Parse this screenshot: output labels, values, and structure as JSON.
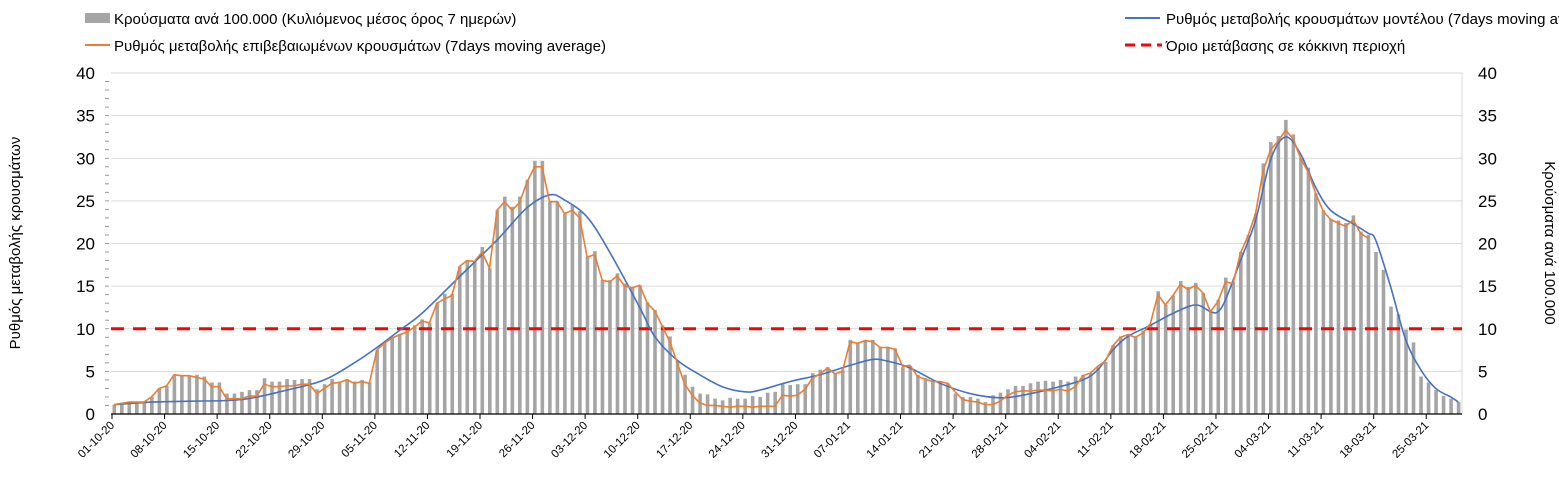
{
  "chart_data": {
    "type": "bar+line",
    "legend": {
      "position": "top",
      "entries": [
        {
          "key": "bars",
          "label": "Κρούσματα ανά 100.000 (Κυλιόμενος μέσος όρος 7 ημερών)"
        },
        {
          "key": "model",
          "label": "Ρυθμός μεταβολής κρουσμάτων μοντέλου (7days moving average)"
        },
        {
          "key": "confirmed",
          "label": "Ρυθμός μεταβολής επιβεβαιωμένων κρουσμάτων (7days moving average)"
        },
        {
          "key": "threshold",
          "label": "Όριο μετάβασης σε κόκκινη περιοχή"
        }
      ]
    },
    "ylabel_left": "Ρυθμός μεταβολής κρουσμάτων",
    "ylabel_right": "Κρούσματα ανά 100.000",
    "ylim": [
      0,
      40
    ],
    "yticks": [
      "0",
      "5",
      "10",
      "15",
      "20",
      "25",
      "30",
      "35",
      "40"
    ],
    "x_unit": "day index (day 0 = 01-10-20)",
    "x_tick_labels": [
      "01-10-20",
      "08-10-20",
      "15-10-20",
      "22-10-20",
      "29-10-20",
      "05-11-20",
      "12-11-20",
      "19-11-20",
      "26-11-20",
      "03-12-20",
      "10-12-20",
      "17-12-20",
      "24-12-20",
      "31-12-20",
      "07-01-21",
      "14-01-21",
      "21-01-21",
      "28-01-21",
      "04-02-21",
      "11-02-21",
      "18-02-21",
      "25-02-21",
      "04-03-21",
      "11-03-21",
      "18-03-21",
      "25-03-21"
    ],
    "x_tick_step_days": 7,
    "grid": true,
    "threshold": 10,
    "colors": {
      "bars": "#a5a5a5",
      "model": "#4472c4",
      "confirmed": "#ed7d31",
      "threshold": "#ff0000"
    },
    "bars": [
      1.1,
      1.25,
      1.4,
      1.4,
      1.4,
      2.0,
      3.0,
      3.3,
      4.6,
      4.5,
      4.5,
      4.6,
      4.4,
      3.7,
      3.7,
      2.4,
      2.4,
      2.6,
      2.8,
      2.8,
      4.2,
      3.8,
      3.8,
      4.1,
      4.0,
      4.1,
      4.1,
      2.9,
      3.5,
      4.1,
      3.8,
      4.1,
      3.8,
      4.0,
      3.7,
      7.5,
      8.3,
      8.9,
      9.3,
      10.0,
      10.4,
      11.1,
      10.7,
      13.0,
      14.1,
      14.1,
      17.3,
      18.0,
      17.9,
      19.6,
      17.1,
      23.9,
      25.5,
      24.3,
      25.5,
      27.5,
      29.7,
      29.7,
      24.9,
      24.9,
      23.5,
      24.5,
      23.8,
      18.4,
      19.1,
      15.7,
      15.7,
      16.5,
      15.3,
      14.9,
      15.1,
      13.1,
      12.2,
      10.4,
      9.1,
      6.2,
      4.6,
      3.2,
      2.4,
      2.3,
      1.8,
      1.6,
      1.9,
      1.8,
      1.8,
      2.1,
      2.0,
      2.5,
      2.6,
      3.5,
      3.4,
      3.5,
      3.5,
      4.8,
      5.2,
      5.5,
      4.8,
      5.2,
      8.7,
      8.3,
      8.7,
      8.7,
      7.9,
      7.9,
      7.7,
      5.5,
      5.6,
      4.6,
      4.2,
      3.8,
      3.8,
      3.6,
      2.4,
      2.0,
      2.0,
      1.8,
      1.4,
      2.2,
      2.5,
      2.9,
      3.3,
      3.3,
      3.6,
      3.8,
      3.9,
      3.8,
      4.0,
      3.8,
      4.4,
      4.6,
      4.8,
      5.5,
      6.1,
      8.1,
      9.1,
      9.4,
      9.1,
      9.8,
      10.6,
      14.4,
      12.8,
      13.9,
      15.6,
      14.9,
      15.4,
      14.2,
      12.0,
      13.4,
      16.0,
      15.5,
      19.0,
      21.0,
      23.5,
      29.4,
      31.9,
      32.6,
      34.5,
      32.8,
      30.0,
      28.9,
      25.9,
      23.9,
      22.9,
      22.7,
      22.4,
      23.3,
      21.4,
      21.0,
      19.0,
      16.9,
      12.6,
      11.7,
      9.9,
      8.4,
      4.4,
      3.7,
      2.8,
      2.1,
      1.8,
      1.4
    ],
    "confirmed": [
      1.1,
      1.25,
      1.4,
      1.4,
      1.4,
      2.0,
      3.0,
      3.3,
      4.6,
      4.5,
      4.5,
      4.3,
      4.1,
      3.2,
      3.2,
      1.8,
      1.8,
      1.8,
      2.1,
      2.1,
      3.5,
      3.2,
      3.2,
      3.3,
      3.3,
      3.5,
      3.5,
      2.4,
      3.0,
      3.6,
      3.7,
      4.0,
      3.6,
      3.8,
      3.6,
      7.5,
      8.3,
      8.9,
      9.3,
      9.6,
      10.2,
      10.9,
      10.7,
      13.0,
      13.5,
      13.9,
      17.3,
      18.0,
      17.9,
      19.0,
      17.1,
      23.9,
      24.9,
      23.9,
      24.8,
      27.2,
      29.0,
      29.0,
      24.9,
      24.9,
      23.5,
      23.9,
      23.0,
      18.4,
      18.7,
      15.7,
      15.5,
      16.2,
      15.0,
      14.8,
      15.1,
      13.0,
      12.1,
      10.3,
      8.5,
      6.0,
      3.5,
      2.2,
      1.3,
      1.0,
      1.0,
      0.9,
      0.8,
      0.9,
      0.9,
      0.8,
      0.9,
      0.9,
      0.9,
      2.2,
      2.1,
      2.2,
      2.9,
      4.2,
      4.7,
      5.4,
      4.7,
      5.0,
      8.5,
      8.3,
      8.6,
      8.5,
      7.8,
      7.8,
      7.6,
      5.6,
      5.7,
      4.4,
      4.1,
      3.8,
      3.8,
      3.6,
      2.6,
      1.7,
      1.5,
      1.4,
      1.1,
      1.1,
      1.5,
      2.2,
      2.6,
      2.7,
      2.7,
      2.8,
      2.8,
      2.7,
      2.9,
      2.7,
      3.2,
      4.5,
      4.8,
      5.6,
      6.2,
      8.0,
      9.0,
      9.3,
      9.0,
      9.5,
      10.6,
      14.0,
      12.8,
      13.9,
      15.2,
      14.6,
      15.1,
      14.2,
      12.0,
      13.2,
      15.5,
      15.3,
      18.9,
      20.9,
      23.5,
      28.5,
      31.0,
      32.0,
      33.3,
      32.3,
      30.0,
      28.4,
      25.9,
      23.8,
      22.8,
      22.4,
      22.0,
      22.8,
      21.2,
      20.6
    ],
    "model": [
      [
        0,
        1.1
      ],
      [
        5,
        1.4
      ],
      [
        10,
        1.5
      ],
      [
        17,
        1.7
      ],
      [
        23,
        2.8
      ],
      [
        28,
        4.0
      ],
      [
        32,
        6.0
      ],
      [
        35,
        7.8
      ],
      [
        38,
        9.8
      ],
      [
        41,
        11.8
      ],
      [
        46,
        16.1
      ],
      [
        51,
        20.4
      ],
      [
        55,
        24.2
      ],
      [
        58,
        25.7
      ],
      [
        60,
        25.1
      ],
      [
        63,
        23.1
      ],
      [
        66,
        19.0
      ],
      [
        70,
        12.5
      ],
      [
        72,
        9.1
      ],
      [
        75,
        6.3
      ],
      [
        78,
        4.6
      ],
      [
        81,
        3.2
      ],
      [
        84,
        2.6
      ],
      [
        86,
        2.8
      ],
      [
        90,
        3.8
      ],
      [
        94,
        4.6
      ],
      [
        98,
        5.7
      ],
      [
        101,
        6.4
      ],
      [
        103,
        6.2
      ],
      [
        106,
        5.4
      ],
      [
        110,
        3.6
      ],
      [
        114,
        2.4
      ],
      [
        118,
        1.9
      ],
      [
        121,
        2.2
      ],
      [
        125,
        3.0
      ],
      [
        129,
        4.0
      ],
      [
        131,
        5.2
      ],
      [
        133,
        7.5
      ],
      [
        135,
        9.1
      ],
      [
        138,
        10.4
      ],
      [
        141,
        11.8
      ],
      [
        144,
        12.8
      ],
      [
        146,
        12.0
      ],
      [
        147,
        12.0
      ],
      [
        148,
        13.4
      ],
      [
        150,
        18.0
      ],
      [
        152,
        22.7
      ],
      [
        154,
        29.8
      ],
      [
        156,
        32.5
      ],
      [
        158,
        30.5
      ],
      [
        160,
        26.6
      ],
      [
        162,
        23.9
      ],
      [
        165,
        22.3
      ],
      [
        167,
        21.2
      ],
      [
        168,
        20.4
      ],
      [
        170,
        14.9
      ],
      [
        172,
        8.7
      ],
      [
        174,
        5.2
      ],
      [
        176,
        3.0
      ],
      [
        178,
        2.0
      ],
      [
        179,
        1.4
      ]
    ]
  }
}
